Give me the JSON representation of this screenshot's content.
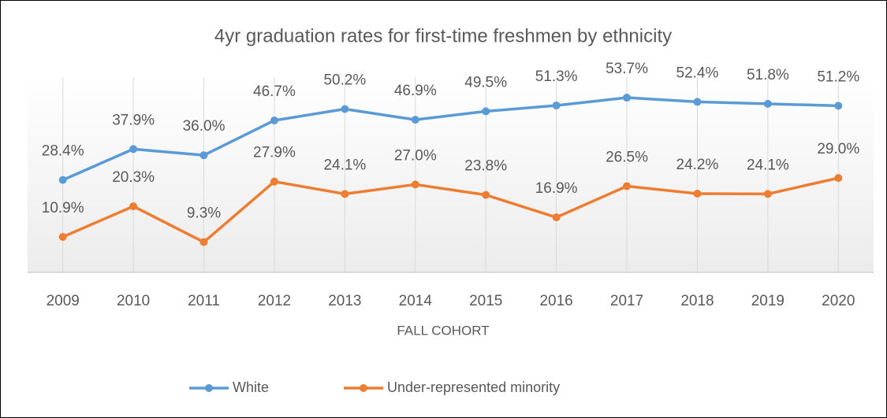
{
  "chart_data": {
    "type": "line",
    "title": "4yr graduation rates for first-time freshmen by ethnicity",
    "x_label": "FALL COHORT",
    "categories": [
      "2009",
      "2010",
      "2011",
      "2012",
      "2013",
      "2014",
      "2015",
      "2016",
      "2017",
      "2018",
      "2019",
      "2020"
    ],
    "series": [
      {
        "name": "White",
        "color": "#5b9bd5",
        "values": [
          28.4,
          37.9,
          36.0,
          46.7,
          50.2,
          46.9,
          49.5,
          51.3,
          53.7,
          52.4,
          51.8,
          51.2
        ],
        "value_labels": [
          "28.4%",
          "37.9%",
          "36.0%",
          "46.7%",
          "50.2%",
          "46.9%",
          "49.5%",
          "51.3%",
          "53.7%",
          "52.4%",
          "51.8%",
          "51.2%"
        ]
      },
      {
        "name": "Under-represented minority",
        "color": "#ed7d31",
        "values": [
          10.9,
          20.3,
          9.3,
          27.9,
          24.1,
          27.0,
          23.8,
          16.9,
          26.5,
          24.2,
          24.1,
          29.0
        ],
        "value_labels": [
          "10.9%",
          "20.3%",
          "9.3%",
          "27.9%",
          "24.1%",
          "27.0%",
          "23.8%",
          "16.9%",
          "26.5%",
          "24.2%",
          "24.1%",
          "29.0%"
        ]
      }
    ],
    "ylim": [
      0,
      60
    ],
    "grid": "x",
    "legend": "bottom"
  }
}
